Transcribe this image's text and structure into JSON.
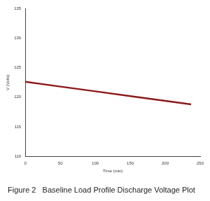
{
  "chart_data": {
    "type": "line",
    "title": "Figure 2   Baseline Load Profile Discharge Voltage Plot",
    "x_label": "Time (min)",
    "y_label": "V (Volts)",
    "x": [
      0,
      50,
      100,
      150,
      200,
      237
    ],
    "values": [
      122.6,
      121.8,
      121.0,
      120.2,
      119.4,
      118.8
    ],
    "color": "#8b1a1a",
    "xlim": [
      0,
      250
    ],
    "xticks": [
      0,
      50,
      100,
      150,
      200,
      250
    ],
    "ylim": [
      110,
      135
    ],
    "yticks": [
      110,
      115,
      120,
      125,
      130,
      135
    ],
    "grid": false
  }
}
